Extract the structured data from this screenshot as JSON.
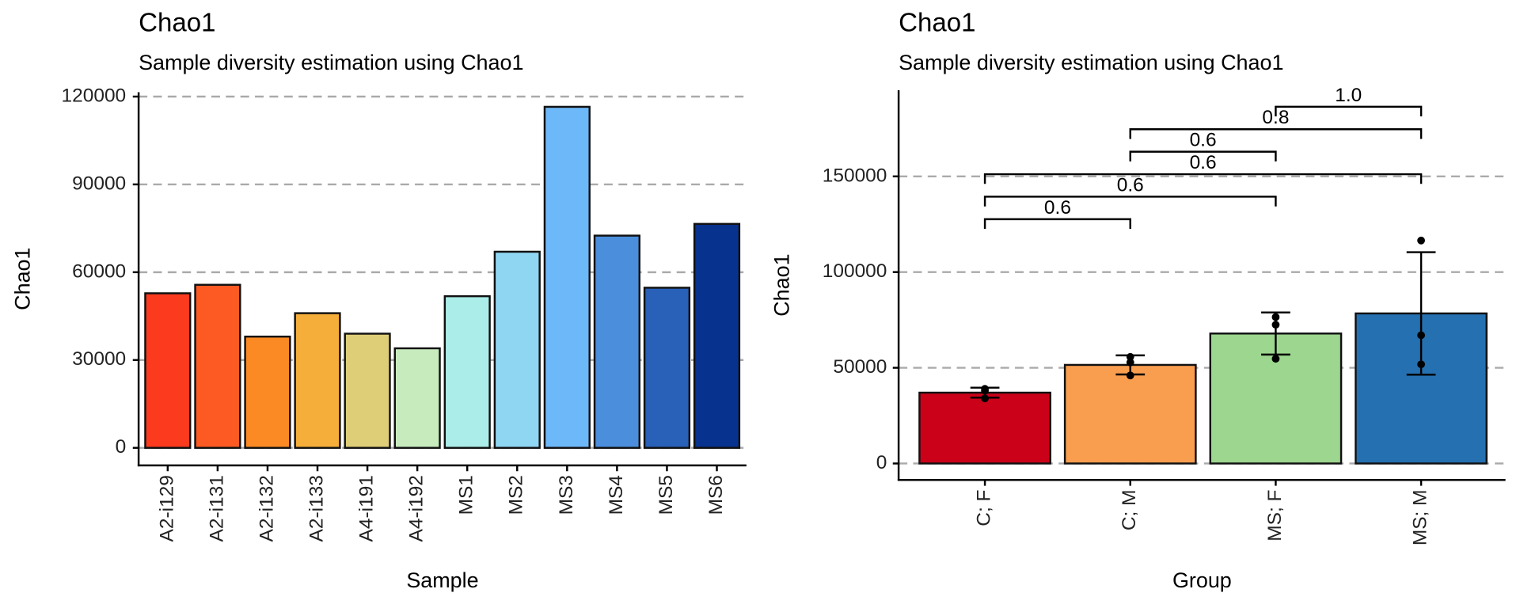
{
  "chart_data": [
    {
      "type": "bar",
      "title": "Chao1",
      "subtitle": "Sample diversity estimation using Chao1",
      "x_label": "Sample",
      "y_label": "Chao1",
      "categories": [
        "A2-i129",
        "A2-i131",
        "A2-i132",
        "A2-i133",
        "A4-i191",
        "A4-i192",
        "MS1",
        "MS2",
        "MS3",
        "MS4",
        "MS5",
        "MS6"
      ],
      "values": [
        52800,
        55700,
        38000,
        46000,
        39000,
        34000,
        51800,
        67000,
        116500,
        72500,
        54700,
        76500
      ],
      "colors": [
        "#FB3A1E",
        "#FC5A22",
        "#FC8A24",
        "#F6AE3A",
        "#DFCE78",
        "#C7EBBD",
        "#ABEDE9",
        "#8FD6F2",
        "#6DB8F8",
        "#4A8EDC",
        "#2960B8",
        "#07338F"
      ],
      "ylim": [
        -6000,
        121500
      ],
      "yticks": [
        0,
        30000,
        60000,
        90000,
        120000
      ],
      "grid": true
    },
    {
      "type": "bar_errorbar",
      "title": "Chao1",
      "subtitle": "Sample diversity estimation using Chao1",
      "x_label": "Group",
      "y_label": "Chao1",
      "categories": [
        "C; F",
        "C; M",
        "MS; F",
        "MS; M"
      ],
      "values": [
        37000,
        51500,
        67900,
        78400
      ],
      "errors": [
        2600,
        5000,
        11000,
        32000
      ],
      "points": [
        [
          38000,
          39000,
          34000
        ],
        [
          52800,
          55700,
          46000
        ],
        [
          76500,
          72500,
          54700
        ],
        [
          51800,
          67000,
          116500
        ]
      ],
      "colors": [
        "#CB0119",
        "#F99E4F",
        "#9DD68F",
        "#2570B0"
      ],
      "comparisons": [
        {
          "groups": [
            "C; F",
            "C; M"
          ],
          "label": "0.6"
        },
        {
          "groups": [
            "C; F",
            "MS; F"
          ],
          "label": "0.6"
        },
        {
          "groups": [
            "C; F",
            "MS; M"
          ],
          "label": "0.6"
        },
        {
          "groups": [
            "C; M",
            "MS; F"
          ],
          "label": "0.6"
        },
        {
          "groups": [
            "C; M",
            "MS; M"
          ],
          "label": "0.8"
        },
        {
          "groups": [
            "MS; F",
            "MS; M"
          ],
          "label": "1.0"
        }
      ],
      "ylim": [
        -8600,
        195000
      ],
      "yticks": [
        0,
        50000,
        100000,
        150000
      ],
      "grid": true
    }
  ]
}
